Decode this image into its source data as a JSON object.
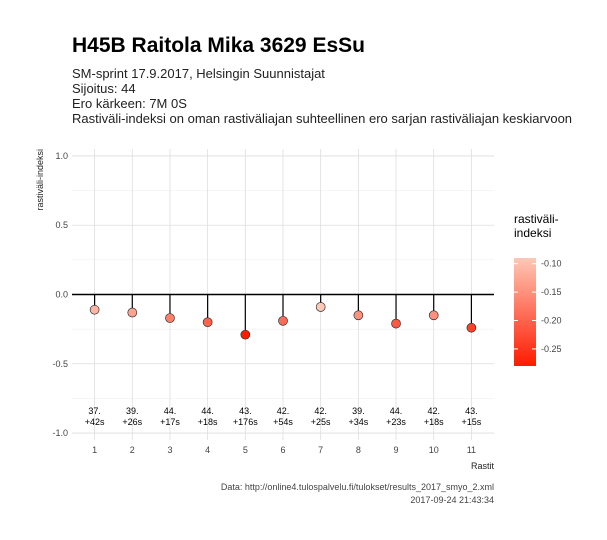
{
  "header": {
    "title": "H45B Raitola Mika 3629 EsSu",
    "subtitle_lines": [
      "SM-sprint 17.9.2017, Helsingin Suunnistajat",
      "Sijoitus: 44",
      "Ero kärkeen: 7M 0S",
      "Rastiväli-indeksi on oman rastiväliajan suhteellinen ero sarjan rastiväliajan keskiarvoon"
    ]
  },
  "caption": {
    "source": "Data: http://online4.tulospalvelu.fi/tulokset/results_2017_smyo_2.xml",
    "timestamp": "2017-09-24 21:43:34"
  },
  "legend": {
    "title_line1": "rastiväli-",
    "title_line2": "indeksi",
    "ticks": [
      "-0.10",
      "-0.15",
      "-0.20",
      "-0.25"
    ],
    "tick_values": [
      -0.1,
      -0.15,
      -0.2,
      -0.25
    ],
    "range": [
      -0.28,
      -0.09
    ],
    "color_low": "#ff1a00",
    "color_high": "#fdc8b6"
  },
  "chart_data": {
    "type": "lollipop",
    "title": "H45B Raitola Mika 3629 EsSu",
    "xlabel": "Rastit",
    "ylabel": "rastiväli-indeksi",
    "ylim": [
      -1.05,
      1.05
    ],
    "y_ticks": [
      1.0,
      0.5,
      0.0,
      -0.5,
      -1.0
    ],
    "y_tick_labels": [
      "1.0",
      "0.5",
      "0.0",
      "-0.5",
      "-1.0"
    ],
    "x": [
      1,
      2,
      3,
      4,
      5,
      6,
      7,
      8,
      9,
      10,
      11
    ],
    "values": [
      -0.11,
      -0.13,
      -0.17,
      -0.2,
      -0.29,
      -0.19,
      -0.09,
      -0.15,
      -0.21,
      -0.15,
      -0.24
    ],
    "labels_position": [
      "37.",
      "39.",
      "44.",
      "44.",
      "43.",
      "42.",
      "42.",
      "39.",
      "44.",
      "42.",
      "43."
    ],
    "labels_time": [
      "+42s",
      "+26s",
      "+17s",
      "+18s",
      "+176s",
      "+54s",
      "+25s",
      "+34s",
      "+23s",
      "+18s",
      "+15s"
    ],
    "grid": true
  }
}
